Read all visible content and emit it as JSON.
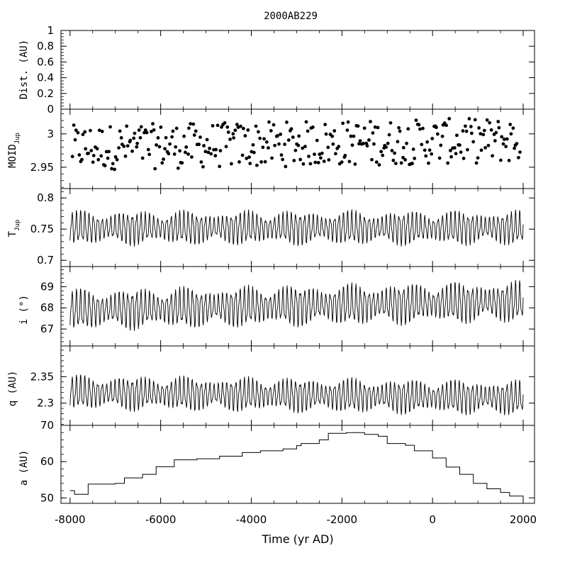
{
  "chart_data": {
    "type": "line",
    "title": "2000AB229",
    "xlabel": "Time (yr AD)",
    "xlim": [
      -8200,
      2250
    ],
    "xticks": [
      -8000,
      -6000,
      -4000,
      -2000,
      0,
      2000
    ],
    "xtick_labels": [
      "-8000",
      "-6000",
      "-4000",
      "-2000",
      "0",
      "2000"
    ],
    "panels": [
      {
        "id": "dist",
        "ylabel": "Dist. (AU)",
        "sub": "",
        "ylim": [
          0,
          1
        ],
        "yticks": [
          0,
          0.2,
          0.4,
          0.6,
          0.8,
          1
        ],
        "ytick_labels": [
          "0",
          "0.2",
          "0.4",
          "0.6",
          "0.8",
          "1"
        ],
        "kind": "empty"
      },
      {
        "id": "moid",
        "ylabel": "MOID",
        "sub": "Jup",
        "ylim": [
          2.918,
          3.037
        ],
        "yticks": [
          2.95,
          3.0
        ],
        "ytick_labels": [
          "2.95",
          "3"
        ],
        "kind": "scatter",
        "x_start": -7950,
        "x_step": 30,
        "n": 330,
        "base": 2.985,
        "spread": 0.034,
        "trend": 0.012
      },
      {
        "id": "tjup",
        "ylabel": "T",
        "sub": "Jup",
        "ylim": [
          0.69,
          0.815
        ],
        "yticks": [
          0.7,
          0.75,
          0.8
        ],
        "ytick_labels": [
          "0.7",
          "0.75",
          "0.8"
        ],
        "kind": "oscillation",
        "x_start": -8000,
        "x_end": 2000,
        "step": 10,
        "base": 0.752,
        "amp": 0.027,
        "period": 95,
        "beat": 1200,
        "trend": 0.0
      },
      {
        "id": "incl",
        "ylabel": "i (°)",
        "sub": "",
        "ylim": [
          66.2,
          69.95
        ],
        "yticks": [
          67,
          68,
          69
        ],
        "ytick_labels": [
          "67",
          "68",
          "69"
        ],
        "kind": "oscillation",
        "x_start": -8000,
        "x_end": 2000,
        "step": 10,
        "base": 68.1,
        "amp": 0.95,
        "period": 95,
        "beat": 1200,
        "trend": 0.4
      },
      {
        "id": "peri",
        "ylabel": "q (AU)",
        "sub": "",
        "ylim": [
          2.258,
          2.408
        ],
        "yticks": [
          2.3,
          2.35
        ],
        "ytick_labels": [
          "2.3",
          "2.35"
        ],
        "kind": "oscillation",
        "x_start": -8000,
        "x_end": 2000,
        "step": 10,
        "base": 2.315,
        "amp": 0.032,
        "period": 95,
        "beat": 1200,
        "trend": -0.01
      },
      {
        "id": "semi",
        "ylabel": "a (AU)",
        "sub": "",
        "ylim": [
          48.5,
          70
        ],
        "yticks": [
          50,
          60,
          70
        ],
        "ytick_labels": [
          "50",
          "60",
          "70"
        ],
        "kind": "steps",
        "x": [
          -8000,
          -7900,
          -7600,
          -7000,
          -6800,
          -6400,
          -6100,
          -5700,
          -5200,
          -4700,
          -4200,
          -3800,
          -3300,
          -3000,
          -2900,
          -2500,
          -2300,
          -1900,
          -1500,
          -1200,
          -1000,
          -600,
          -400,
          0,
          300,
          600,
          900,
          1200,
          1500,
          1700,
          2000
        ],
        "y": [
          52,
          51,
          53.8,
          54,
          55.5,
          56.5,
          58.6,
          60.5,
          60.8,
          61.5,
          62.5,
          63,
          63.5,
          64.4,
          65,
          66,
          67.8,
          68,
          67.5,
          67,
          65,
          64.5,
          63,
          61,
          58.5,
          56.5,
          54,
          52.5,
          51.5,
          50.5,
          49.8
        ]
      }
    ]
  }
}
